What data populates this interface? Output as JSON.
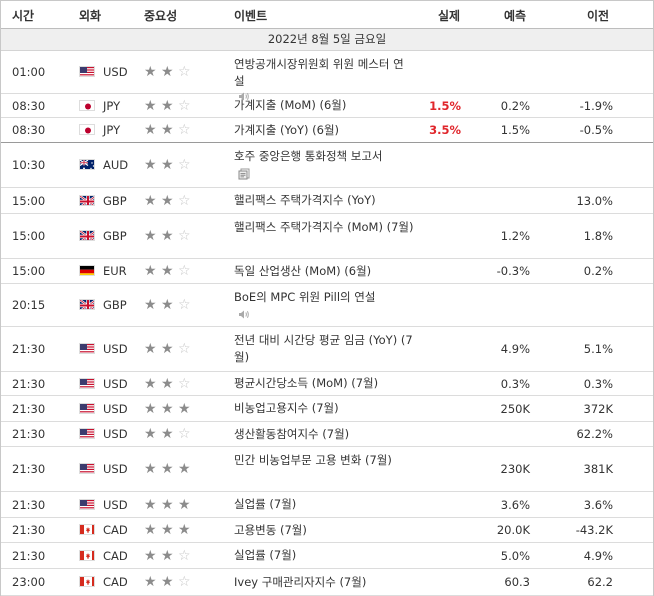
{
  "header": {
    "time": "시간",
    "currency": "외화",
    "importance": "중요성",
    "event": "이벤트",
    "actual": "실제",
    "forecast": "예측",
    "previous": "이전"
  },
  "date_row": "2022년 8월 5일 금요일",
  "rows": [
    {
      "time": "01:00",
      "flag": "us-flag-icon",
      "currency": "USD",
      "stars": 2,
      "event": "연방공개시장위원회 위원 메스터 연설",
      "icon": "speaker-icon",
      "actual": "",
      "forecast": "",
      "previous": ""
    },
    {
      "time": "08:30",
      "flag": "jp-flag-icon",
      "currency": "JPY",
      "stars": 2,
      "event": "가계지출 (MoM) (6월)",
      "actual": "1.5%",
      "forecast": "0.2%",
      "previous": "-1.9%"
    },
    {
      "time": "08:30",
      "flag": "jp-flag-icon",
      "currency": "JPY",
      "stars": 2,
      "event": "가계지출 (YoY) (6월)",
      "actual": "3.5%",
      "forecast": "1.5%",
      "previous": "-0.5%"
    },
    {
      "time": "10:30",
      "flag": "au-flag-icon",
      "currency": "AUD",
      "stars": 2,
      "event": "호주 중앙은행 통화정책 보고서",
      "icon": "document-icon",
      "actual": "",
      "forecast": "",
      "previous": ""
    },
    {
      "time": "15:00",
      "flag": "gb-flag-icon",
      "currency": "GBP",
      "stars": 2,
      "event": "핼리팩스 주택가격지수 (YoY)",
      "actual": "",
      "forecast": "",
      "previous": "13.0%"
    },
    {
      "time": "15:00",
      "flag": "gb-flag-icon",
      "currency": "GBP",
      "stars": 2,
      "event": "핼리팩스 주택가격지수 (MoM) (7월)",
      "actual": "",
      "forecast": "1.2%",
      "previous": "1.8%"
    },
    {
      "time": "15:00",
      "flag": "de-flag-icon",
      "currency": "EUR",
      "stars": 2,
      "event": "독일 산업생산 (MoM) (6월)",
      "actual": "",
      "forecast": "-0.3%",
      "previous": "0.2%"
    },
    {
      "time": "20:15",
      "flag": "gb-flag-icon",
      "currency": "GBP",
      "stars": 2,
      "event": "BoE의 MPC 위원 Pill의 연설",
      "icon": "speaker-icon",
      "actual": "",
      "forecast": "",
      "previous": ""
    },
    {
      "time": "21:30",
      "flag": "us-flag-icon",
      "currency": "USD",
      "stars": 2,
      "event": "전년 대비 시간당 평균 임금 (YoY) (7월)",
      "actual": "",
      "forecast": "4.9%",
      "previous": "5.1%"
    },
    {
      "time": "21:30",
      "flag": "us-flag-icon",
      "currency": "USD",
      "stars": 2,
      "event": "평균시간당소득 (MoM) (7월)",
      "actual": "",
      "forecast": "0.3%",
      "previous": "0.3%"
    },
    {
      "time": "21:30",
      "flag": "us-flag-icon",
      "currency": "USD",
      "stars": 3,
      "event": "비농업고용지수 (7월)",
      "actual": "",
      "forecast": "250K",
      "previous": "372K"
    },
    {
      "time": "21:30",
      "flag": "us-flag-icon",
      "currency": "USD",
      "stars": 2,
      "event": "생산활동참여지수 (7월)",
      "actual": "",
      "forecast": "",
      "previous": "62.2%"
    },
    {
      "time": "21:30",
      "flag": "us-flag-icon",
      "currency": "USD",
      "stars": 3,
      "event": "민간 비농업부문 고용 변화 (7월)",
      "actual": "",
      "forecast": "230K",
      "previous": "381K"
    },
    {
      "time": "21:30",
      "flag": "us-flag-icon",
      "currency": "USD",
      "stars": 3,
      "event": "실업률 (7월)",
      "actual": "",
      "forecast": "3.6%",
      "previous": "3.6%"
    },
    {
      "time": "21:30",
      "flag": "ca-flag-icon",
      "currency": "CAD",
      "stars": 3,
      "event": "고용변동 (7월)",
      "actual": "",
      "forecast": "20.0K",
      "previous": "-43.2K"
    },
    {
      "time": "21:30",
      "flag": "ca-flag-icon",
      "currency": "CAD",
      "stars": 2,
      "event": "실업률 (7월)",
      "actual": "",
      "forecast": "5.0%",
      "previous": "4.9%"
    },
    {
      "time": "23:00",
      "flag": "ca-flag-icon",
      "currency": "CAD",
      "stars": 2,
      "event": "Ivey 구매관리자지수 (7월)",
      "actual": "",
      "forecast": "60.3",
      "previous": "62.2"
    }
  ],
  "colors": {
    "actual_positive": "#e0262b",
    "star_on": "#8c8c8c",
    "star_off": "#c6c6c6",
    "date_bg": "#efefef"
  }
}
